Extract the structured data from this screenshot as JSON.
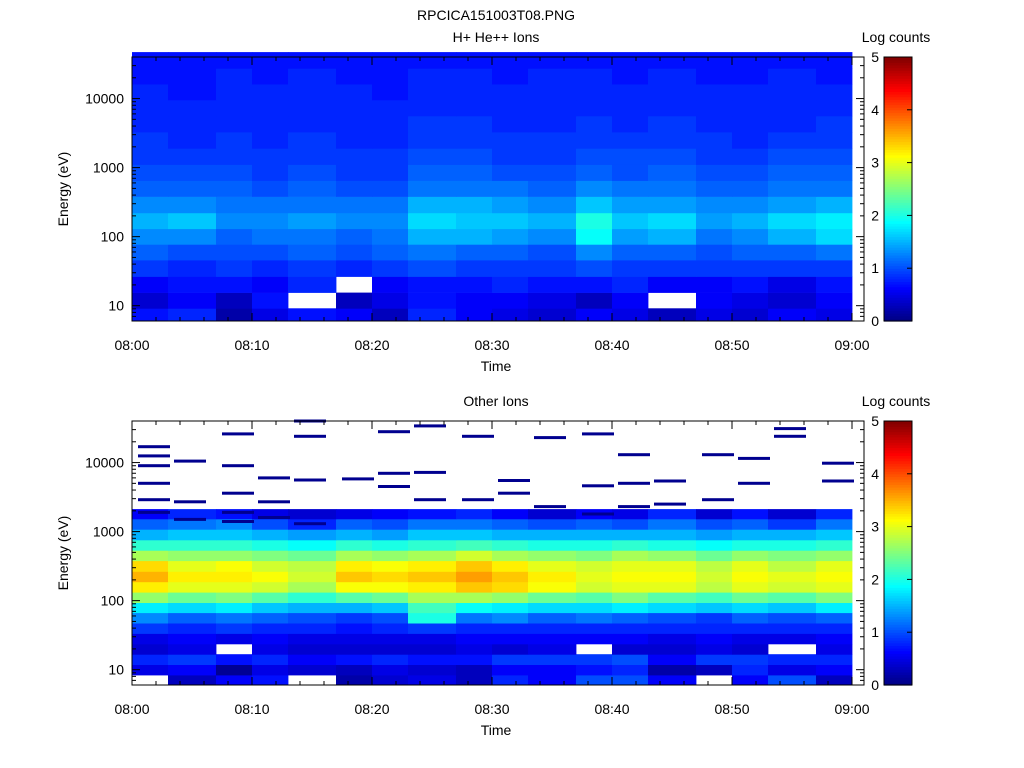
{
  "figure": {
    "title": "RPCICA151003T08.PNG"
  },
  "chart_data": [
    {
      "type": "heatmap",
      "title": "H+ He++ Ions",
      "xlabel": "Time",
      "ylabel": "Energy (eV)",
      "x_scale": "time",
      "y_scale": "log",
      "x_range": [
        "08:00",
        "09:01"
      ],
      "ylim": [
        6,
        40000
      ],
      "x_ticks": [
        "08:00",
        "08:10",
        "08:20",
        "08:30",
        "08:40",
        "08:50",
        "09:00"
      ],
      "y_ticks": [
        10,
        100,
        1000,
        10000
      ],
      "y_tick_labels": [
        "10",
        "100",
        "1000",
        "10000"
      ],
      "colorbar": {
        "label": "Log counts",
        "range": [
          0,
          5
        ],
        "ticks": [
          "0",
          "1",
          "2",
          "3",
          "4",
          "5"
        ],
        "colormap": "jet"
      },
      "time_bins": [
        "08:00",
        "08:03",
        "08:07",
        "08:10",
        "08:13",
        "08:17",
        "08:20",
        "08:23",
        "08:27",
        "08:30",
        "08:33",
        "08:37",
        "08:40",
        "08:43",
        "08:47",
        "08:50",
        "08:53",
        "08:57"
      ],
      "energy_bands_eV": [
        7,
        12,
        20,
        35,
        60,
        100,
        170,
        290,
        500,
        850,
        1450,
        2500,
        4300,
        7300,
        12500,
        21000,
        36000
      ],
      "values_log_counts": [
        [
          0.7,
          0.8,
          0.2,
          0.5,
          0.7,
          0.6,
          0.3,
          0.8,
          0.6,
          0.5,
          0.4,
          0.6,
          0.5,
          0.3,
          0.5,
          0.4,
          0.6,
          0.5
        ],
        [
          0.4,
          0.6,
          0.3,
          0.7,
          null,
          0.3,
          0.5,
          0.7,
          0.6,
          0.6,
          0.5,
          0.3,
          0.6,
          null,
          0.6,
          0.5,
          0.4,
          0.6
        ],
        [
          0.6,
          0.7,
          0.7,
          0.6,
          0.8,
          null,
          0.6,
          0.7,
          0.7,
          0.8,
          0.7,
          0.7,
          0.8,
          0.6,
          0.6,
          0.7,
          0.5,
          0.7
        ],
        [
          0.9,
          0.8,
          0.9,
          0.8,
          0.9,
          0.8,
          0.9,
          1.0,
          0.9,
          0.9,
          0.9,
          1.0,
          0.9,
          0.9,
          0.9,
          0.9,
          0.9,
          0.9
        ],
        [
          1.1,
          1.0,
          1.0,
          1.0,
          1.1,
          1.0,
          1.1,
          1.2,
          1.1,
          1.1,
          1.0,
          1.3,
          1.1,
          1.1,
          1.0,
          1.1,
          1.1,
          1.2
        ],
        [
          1.3,
          1.3,
          1.1,
          1.2,
          1.2,
          1.1,
          1.2,
          1.5,
          1.5,
          1.4,
          1.3,
          1.9,
          1.4,
          1.5,
          1.2,
          1.3,
          1.5,
          1.7
        ],
        [
          1.5,
          1.6,
          1.3,
          1.3,
          1.4,
          1.3,
          1.3,
          1.7,
          1.6,
          1.6,
          1.5,
          2.0,
          1.6,
          1.7,
          1.4,
          1.5,
          1.7,
          1.8
        ],
        [
          1.3,
          1.3,
          1.2,
          1.2,
          1.2,
          1.2,
          1.2,
          1.5,
          1.5,
          1.4,
          1.3,
          1.6,
          1.4,
          1.4,
          1.3,
          1.3,
          1.4,
          1.5
        ],
        [
          1.1,
          1.1,
          1.1,
          1.0,
          1.1,
          1.0,
          1.0,
          1.2,
          1.2,
          1.2,
          1.1,
          1.3,
          1.2,
          1.2,
          1.1,
          1.1,
          1.2,
          1.2
        ],
        [
          1.0,
          1.0,
          1.0,
          0.9,
          1.0,
          0.9,
          0.9,
          1.1,
          1.1,
          1.0,
          1.0,
          1.1,
          1.0,
          1.1,
          1.0,
          1.0,
          1.1,
          1.1
        ],
        [
          0.9,
          0.9,
          0.9,
          0.9,
          0.9,
          0.9,
          0.9,
          1.0,
          1.0,
          0.9,
          0.9,
          1.0,
          1.0,
          1.0,
          0.9,
          0.9,
          1.0,
          1.0
        ],
        [
          0.9,
          0.8,
          0.9,
          0.8,
          0.9,
          0.8,
          0.8,
          0.9,
          0.9,
          0.9,
          0.9,
          0.9,
          0.9,
          0.9,
          0.9,
          0.8,
          0.9,
          0.9
        ],
        [
          0.8,
          0.8,
          0.8,
          0.8,
          0.8,
          0.8,
          0.8,
          0.9,
          0.9,
          0.8,
          0.8,
          0.9,
          0.8,
          0.9,
          0.8,
          0.8,
          0.8,
          0.9
        ],
        [
          0.8,
          0.8,
          0.8,
          0.8,
          0.8,
          0.8,
          0.8,
          0.8,
          0.8,
          0.8,
          0.8,
          0.8,
          0.8,
          0.8,
          0.8,
          0.8,
          0.8,
          0.8
        ],
        [
          0.8,
          0.7,
          0.8,
          0.8,
          0.8,
          0.8,
          0.7,
          0.8,
          0.8,
          0.8,
          0.8,
          0.8,
          0.8,
          0.8,
          0.8,
          0.8,
          0.8,
          0.8
        ],
        [
          0.7,
          0.7,
          0.8,
          0.7,
          0.8,
          0.7,
          0.7,
          0.8,
          0.8,
          0.7,
          0.8,
          0.8,
          0.7,
          0.8,
          0.7,
          0.7,
          0.8,
          0.7
        ],
        [
          0.7,
          0.7,
          0.7,
          0.7,
          0.7,
          0.7,
          0.7,
          0.7,
          0.7,
          0.7,
          0.7,
          0.7,
          0.7,
          0.7,
          0.7,
          0.7,
          0.7,
          0.7
        ]
      ]
    },
    {
      "type": "heatmap",
      "title": "Other Ions",
      "xlabel": "Time",
      "ylabel": "Energy (eV)",
      "x_scale": "time",
      "y_scale": "log",
      "x_range": [
        "08:00",
        "09:01"
      ],
      "ylim": [
        6,
        40000
      ],
      "x_ticks": [
        "08:00",
        "08:10",
        "08:20",
        "08:30",
        "08:40",
        "08:50",
        "09:00"
      ],
      "y_ticks": [
        10,
        100,
        1000,
        10000
      ],
      "y_tick_labels": [
        "10",
        "100",
        "1000",
        "10000"
      ],
      "colorbar": {
        "label": "Log counts",
        "range": [
          0,
          5
        ],
        "ticks": [
          "0",
          "1",
          "2",
          "3",
          "4",
          "5"
        ],
        "colormap": "jet"
      },
      "time_bins": [
        "08:00",
        "08:03",
        "08:07",
        "08:10",
        "08:13",
        "08:17",
        "08:20",
        "08:23",
        "08:27",
        "08:30",
        "08:33",
        "08:37",
        "08:40",
        "08:43",
        "08:47",
        "08:50",
        "08:53",
        "08:57"
      ],
      "energy_bands_eV": [
        7,
        10,
        14,
        20,
        28,
        40,
        56,
        80,
        110,
        160,
        220,
        320,
        450,
        640,
        900,
        1300,
        1800
      ],
      "values_log_counts": [
        [
          null,
          0.3,
          0.6,
          0.7,
          null,
          0.2,
          0.4,
          0.5,
          0.3,
          0.8,
          0.6,
          1.0,
          1.0,
          0.6,
          null,
          0.6,
          1.0,
          0.3
        ],
        [
          0.5,
          0.6,
          0.1,
          0.5,
          0.4,
          0.3,
          0.5,
          0.4,
          0.3,
          0.6,
          0.6,
          0.7,
          0.8,
          0.2,
          0.3,
          0.8,
          0.5,
          0.6
        ],
        [
          0.8,
          0.9,
          0.7,
          0.8,
          0.6,
          0.7,
          0.8,
          0.7,
          0.7,
          0.9,
          0.9,
          0.9,
          1.0,
          0.6,
          0.9,
          0.9,
          0.8,
          0.8
        ],
        [
          0.4,
          0.5,
          null,
          0.5,
          0.4,
          0.4,
          0.4,
          0.4,
          0.5,
          0.4,
          0.5,
          null,
          0.4,
          0.4,
          0.5,
          0.4,
          null,
          0.5
        ],
        [
          0.5,
          0.6,
          0.5,
          0.6,
          0.5,
          0.5,
          0.5,
          0.5,
          0.6,
          0.6,
          0.6,
          0.6,
          0.6,
          0.5,
          0.6,
          0.5,
          0.5,
          0.6
        ],
        [
          0.9,
          0.8,
          0.9,
          0.8,
          0.8,
          0.7,
          0.8,
          0.9,
          0.8,
          0.8,
          0.8,
          0.8,
          0.8,
          0.8,
          0.8,
          0.8,
          0.8,
          0.8
        ],
        [
          1.3,
          1.1,
          1.2,
          1.1,
          1.0,
          0.9,
          1.0,
          2.0,
          1.2,
          1.3,
          1.1,
          1.2,
          1.1,
          1.0,
          0.9,
          1.1,
          1.0,
          1.1
        ],
        [
          1.8,
          1.7,
          1.8,
          1.6,
          1.5,
          1.5,
          1.6,
          2.2,
          1.9,
          1.8,
          1.7,
          1.7,
          1.8,
          1.7,
          1.6,
          1.7,
          1.6,
          1.8
        ],
        [
          2.6,
          2.4,
          2.5,
          2.3,
          2.1,
          2.3,
          2.4,
          2.7,
          2.7,
          2.6,
          2.4,
          2.3,
          2.5,
          2.3,
          2.2,
          2.4,
          2.3,
          2.5
        ],
        [
          3.2,
          3.0,
          3.0,
          2.9,
          2.7,
          3.1,
          3.1,
          3.2,
          3.4,
          3.3,
          3.1,
          2.9,
          3.0,
          3.0,
          2.8,
          3.0,
          2.9,
          3.0
        ],
        [
          3.5,
          3.2,
          3.2,
          3.1,
          2.9,
          3.4,
          3.3,
          3.4,
          3.6,
          3.4,
          3.2,
          3.0,
          3.1,
          3.1,
          2.9,
          3.1,
          3.0,
          3.1
        ],
        [
          3.3,
          3.0,
          3.1,
          2.9,
          2.8,
          3.2,
          3.1,
          3.2,
          3.4,
          3.2,
          3.0,
          2.9,
          3.0,
          3.0,
          2.8,
          3.0,
          2.8,
          3.0
        ],
        [
          2.7,
          2.6,
          2.6,
          2.5,
          2.4,
          2.7,
          2.6,
          2.7,
          2.9,
          2.7,
          2.6,
          2.5,
          2.7,
          2.6,
          2.4,
          2.6,
          2.5,
          2.6
        ],
        [
          2.1,
          2.1,
          2.1,
          2.0,
          1.9,
          2.1,
          2.0,
          2.1,
          2.2,
          2.1,
          2.0,
          2.0,
          2.1,
          2.0,
          1.9,
          2.0,
          2.0,
          2.1
        ],
        [
          1.5,
          1.6,
          1.6,
          1.5,
          1.4,
          1.5,
          1.4,
          1.6,
          1.6,
          1.5,
          1.5,
          1.5,
          1.5,
          1.5,
          1.4,
          1.5,
          1.5,
          1.6
        ],
        [
          1.1,
          1.2,
          1.3,
          1.0,
          0.8,
          1.1,
          1.0,
          1.2,
          1.2,
          1.1,
          1.0,
          1.1,
          1.0,
          1.2,
          1.0,
          1.1,
          0.9,
          1.2
        ],
        [
          0.6,
          0.8,
          0.7,
          0.5,
          0.4,
          0.5,
          0.6,
          0.7,
          0.8,
          0.6,
          0.4,
          0.6,
          0.5,
          0.8,
          0.4,
          0.7,
          0.4,
          0.8
        ]
      ],
      "sparse_high_energy_lines": [
        {
          "time": "08:00",
          "energy_eV": [
            1900,
            2900,
            5000,
            9000,
            12500,
            17000
          ]
        },
        {
          "time": "08:03",
          "energy_eV": [
            1500,
            2700,
            10500
          ]
        },
        {
          "time": "08:07",
          "energy_eV": [
            1400,
            1900,
            3600,
            9000,
            26000
          ]
        },
        {
          "time": "08:10",
          "energy_eV": [
            1600,
            2700,
            6000
          ]
        },
        {
          "time": "08:13",
          "energy_eV": [
            1300,
            5600,
            24000,
            40000
          ]
        },
        {
          "time": "08:17",
          "energy_eV": [
            5800
          ]
        },
        {
          "time": "08:20",
          "energy_eV": [
            4500,
            7000,
            28000
          ]
        },
        {
          "time": "08:23",
          "energy_eV": [
            2900,
            7200,
            34000
          ]
        },
        {
          "time": "08:27",
          "energy_eV": [
            2900,
            24000
          ]
        },
        {
          "time": "08:30",
          "energy_eV": [
            3600,
            5500
          ]
        },
        {
          "time": "08:33",
          "energy_eV": [
            2300,
            23000
          ]
        },
        {
          "time": "08:37",
          "energy_eV": [
            1800,
            4600,
            26000
          ]
        },
        {
          "time": "08:40",
          "energy_eV": [
            2300,
            5000,
            13000
          ]
        },
        {
          "time": "08:43",
          "energy_eV": [
            2500,
            5400
          ]
        },
        {
          "time": "08:47",
          "energy_eV": [
            2900,
            13000
          ]
        },
        {
          "time": "08:50",
          "energy_eV": [
            5000,
            11500
          ]
        },
        {
          "time": "08:53",
          "energy_eV": [
            24000,
            31000
          ]
        },
        {
          "time": "08:57",
          "energy_eV": [
            5400,
            9800
          ]
        }
      ]
    }
  ]
}
